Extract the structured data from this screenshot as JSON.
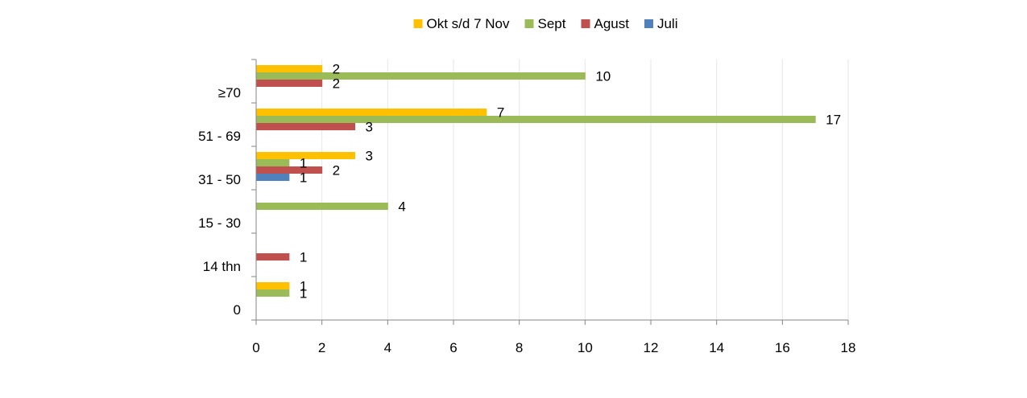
{
  "chart_data": {
    "type": "bar",
    "orientation": "horizontal",
    "categories": [
      "≥70",
      "51 - 69",
      "31 - 50",
      "15 - 30",
      "14 thn",
      "0"
    ],
    "series": [
      {
        "name": "Okt s/d 7 Nov",
        "color": "#FFC000",
        "values": [
          2,
          7,
          3,
          null,
          null,
          1
        ]
      },
      {
        "name": "Sept",
        "color": "#9BBB59",
        "values": [
          10,
          17,
          1,
          4,
          null,
          1
        ]
      },
      {
        "name": "Agust",
        "color": "#C0504D",
        "values": [
          2,
          3,
          2,
          null,
          1,
          null
        ]
      },
      {
        "name": "Juli",
        "color": "#4F81BD",
        "values": [
          null,
          null,
          1,
          null,
          null,
          null
        ]
      }
    ],
    "xlim": [
      0,
      18
    ],
    "xticks": [
      "0",
      "2",
      "4",
      "6",
      "8",
      "10",
      "12",
      "14",
      "16",
      "18"
    ],
    "grid": true,
    "legend_position": "top",
    "data_labels": true
  }
}
